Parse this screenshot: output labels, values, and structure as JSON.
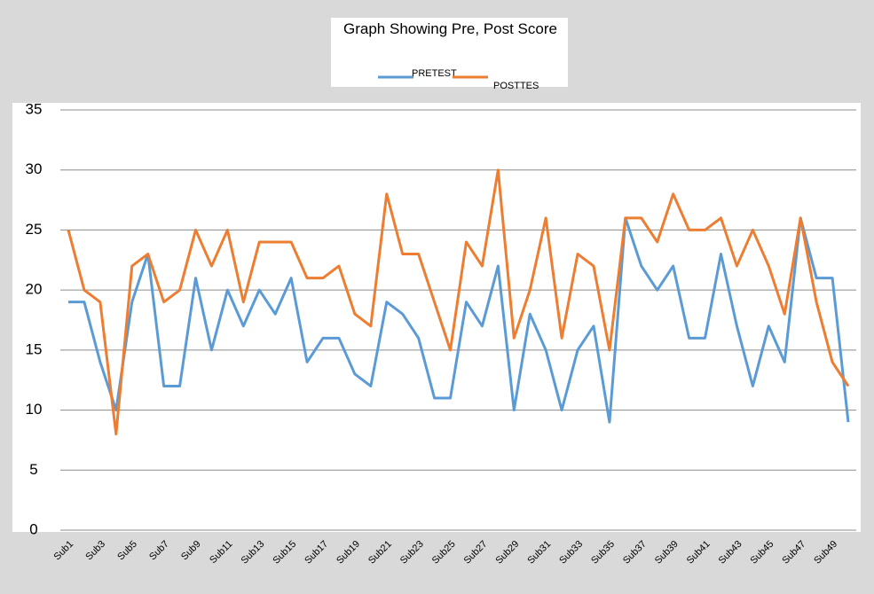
{
  "chart_data": {
    "type": "line",
    "title": "Graph Showing Pre, Post Score",
    "categories": [
      "Sub1",
      null,
      "Sub3",
      null,
      "Sub5",
      null,
      "Sub7",
      null,
      "Sub9",
      null,
      "Sub11",
      null,
      "Sub13",
      null,
      "Sub15",
      null,
      "Sub17",
      null,
      "Sub19",
      null,
      "Sub21",
      null,
      "Sub23",
      null,
      "Sub25",
      null,
      "Sub27",
      null,
      "Sub29",
      null,
      "Sub31",
      null,
      "Sub33",
      null,
      "Sub35",
      null,
      "Sub37",
      null,
      "Sub39",
      null,
      "Sub41",
      null,
      "Sub43",
      null,
      "Sub45",
      null,
      "Sub47",
      null,
      "Sub49",
      null
    ],
    "series": [
      {
        "name": "PRETEST",
        "color": "#5b9bd5",
        "values": [
          19,
          19,
          14,
          10,
          19,
          23,
          12,
          12,
          21,
          15,
          20,
          17,
          20,
          18,
          21,
          14,
          16,
          16,
          13,
          12,
          19,
          18,
          16,
          11,
          11,
          19,
          17,
          22,
          10,
          18,
          15,
          10,
          15,
          17,
          9,
          26,
          22,
          20,
          22,
          16,
          16,
          23,
          17,
          12,
          17,
          14,
          26,
          21,
          21,
          9
        ]
      },
      {
        "name": "POSTTES",
        "color": "#ed7d31",
        "values": [
          25,
          20,
          19,
          8,
          22,
          23,
          19,
          20,
          25,
          22,
          25,
          19,
          24,
          24,
          24,
          21,
          21,
          22,
          18,
          17,
          28,
          23,
          23,
          19,
          15,
          24,
          22,
          30,
          16,
          20,
          26,
          16,
          23,
          22,
          15,
          26,
          26,
          24,
          28,
          25,
          25,
          26,
          22,
          25,
          22,
          18,
          26,
          19,
          14,
          12
        ]
      }
    ],
    "ylim": [
      0,
      35
    ],
    "yticks": [
      0,
      5,
      10,
      15,
      20,
      25,
      30,
      35
    ],
    "grid": true
  }
}
